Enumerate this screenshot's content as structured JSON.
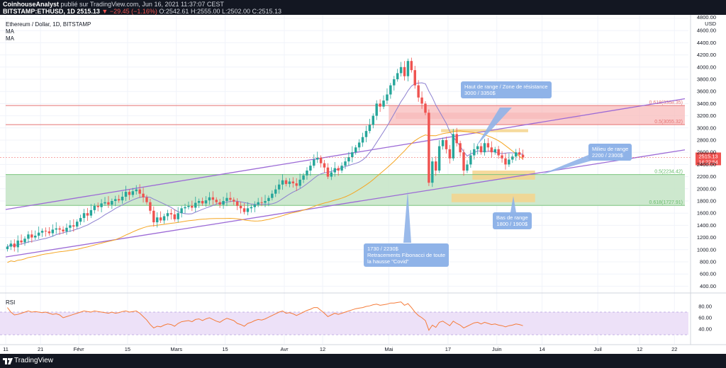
{
  "header": {
    "author": "CoinhouseAnalyst",
    "published": "publié sur TradingView.com, Jun 16, 2021 11:37:07 CEST",
    "symbol": "BITSTAMP:ETHUSD, 1D",
    "last": "2515.13",
    "change": "▼ −29.45 (−1.16%)",
    "ohlc": "O:2542.61 H:2555.00 L:2502.00 C:2515.13"
  },
  "legend": {
    "title": "Ethereum / Dollar, 1D, BITSTAMP",
    "ma1": "MA",
    "ma2": "MA",
    "rsi": "RSI"
  },
  "footer": {
    "brand": "TradingView"
  },
  "colors": {
    "up": "#26a69a",
    "down": "#ef5350",
    "channel": "#9c6ad6",
    "ma_fast": "#8c7fd0",
    "ma_slow": "#f5a623",
    "green_zone": "#c8e6c9",
    "red_zone": "#f8bbbb",
    "orange_zone": "#f5d48c",
    "rsi_line": "#f57c3a",
    "rsi_band": "#ede1f8",
    "note_bg": "#8fb3e8"
  },
  "annotations": {
    "resistance": [
      "Haut de range / Zone de résistance",
      "3000 / 3350$"
    ],
    "mid": [
      "Milieu de range",
      "2200 / 2300$"
    ],
    "low": [
      "Bas de range",
      "1800 / 1900$"
    ],
    "fib": [
      "1730 / 2230$",
      "Retracements Fibonacci de toute",
      "la hausse \"Covid\""
    ],
    "fib_levels": [
      "0.618(3368.35)",
      "0.5(3055.32)",
      "0.5(2234.42)",
      "0.618(1727.91)"
    ]
  },
  "chart_data": {
    "type": "candlestick",
    "title": "Ethereum / Dollar, 1D, BITSTAMP",
    "price_unit": "USD",
    "y_ticks": [
      400,
      600,
      800,
      1000,
      1200,
      1400,
      1600,
      1800,
      2000,
      2200,
      2400,
      2600,
      2800,
      3000,
      3200,
      3400,
      3600,
      3800,
      4000,
      4200,
      4400,
      4600,
      4800
    ],
    "price_labels": {
      "last": "2515.13",
      "countdown": "14:22:54",
      "top": "4800.00",
      "unit": "USD"
    },
    "x_ticks": [
      "11",
      "21",
      "Févr",
      "15",
      "Mars",
      "15",
      "Avr",
      "12",
      "Mai",
      "17",
      "Juin",
      "14",
      "Juil",
      "12",
      "22"
    ],
    "x_tick_days": [
      0,
      10,
      21,
      35,
      49,
      63,
      80,
      91,
      110,
      127,
      141,
      154,
      170,
      182,
      192
    ],
    "x_start_date": "2021-01-11",
    "closes": [
      1050,
      1100,
      1040,
      1150,
      1120,
      1180,
      1250,
      1200,
      1230,
      1280,
      1310,
      1300,
      1270,
      1330,
      1350,
      1330,
      1300,
      1360,
      1400,
      1380,
      1460,
      1520,
      1600,
      1560,
      1650,
      1720,
      1700,
      1760,
      1780,
      1740,
      1800,
      1830,
      1810,
      1870,
      1950,
      1900,
      1960,
      1990,
      1920,
      1860,
      1780,
      1640,
      1450,
      1530,
      1480,
      1550,
      1600,
      1580,
      1500,
      1600,
      1680,
      1700,
      1720,
      1690,
      1770,
      1800,
      1760,
      1810,
      1860,
      1820,
      1780,
      1740,
      1800,
      1850,
      1820,
      1790,
      1720,
      1680,
      1620,
      1680,
      1700,
      1740,
      1780,
      1770,
      1800,
      1850,
      1920,
      1990,
      2070,
      2140,
      2080,
      2120,
      2090,
      2050,
      2150,
      2220,
      2300,
      2380,
      2480,
      2510,
      2420,
      2350,
      2200,
      2270,
      2340,
      2300,
      2380,
      2450,
      2520,
      2600,
      2680,
      2760,
      2850,
      2950,
      3050,
      3200,
      3400,
      3350,
      3450,
      3550,
      3700,
      3800,
      3900,
      4000,
      3850,
      4100,
      3950,
      3700,
      3500,
      3400,
      3250,
      2100,
      2450,
      2300,
      2700,
      2800,
      2650,
      2500,
      2900,
      2750,
      2600,
      2300,
      2400,
      2550,
      2650,
      2700,
      2600,
      2750,
      2680,
      2600,
      2650,
      2550,
      2500,
      2400,
      2480,
      2530,
      2600,
      2560,
      2515
    ],
    "rsi_values": [
      78,
      70,
      65,
      66,
      68,
      70,
      72,
      70,
      71,
      70,
      69,
      70,
      68,
      66,
      67,
      65,
      60,
      62,
      64,
      66,
      68,
      70,
      72,
      71,
      70,
      72,
      71,
      70,
      69,
      68,
      70,
      68,
      69,
      71,
      72,
      70,
      71,
      72,
      68,
      62,
      56,
      48,
      42,
      45,
      44,
      47,
      49,
      48,
      45,
      50,
      53,
      54,
      55,
      53,
      57,
      58,
      55,
      58,
      60,
      57,
      54,
      52,
      56,
      59,
      57,
      55,
      50,
      48,
      45,
      50,
      52,
      55,
      57,
      56,
      58,
      61,
      64,
      67,
      70,
      72,
      68,
      69,
      67,
      64,
      67,
      70,
      73,
      75,
      78,
      78,
      73,
      68,
      62,
      65,
      68,
      66,
      68,
      70,
      72,
      74,
      76,
      77,
      78,
      80,
      81,
      83,
      84,
      82,
      83,
      84,
      86,
      86,
      87,
      88,
      82,
      85,
      78,
      70,
      64,
      60,
      55,
      38,
      47,
      43,
      52,
      54,
      50,
      46,
      54,
      50,
      47,
      42,
      45,
      48,
      51,
      52,
      49,
      52,
      50,
      48,
      49,
      47,
      46,
      44,
      46,
      47,
      49,
      48,
      46
    ],
    "rsi_ticks": [
      40,
      60,
      80
    ],
    "rsi_band": [
      30,
      70
    ],
    "channel_lines": [
      [
        [
          0,
          1660
        ],
        [
          195,
          3480
        ]
      ],
      [
        [
          0,
          880
        ],
        [
          195,
          2640
        ]
      ]
    ],
    "zones": [
      {
        "from_day": 0,
        "to_day": 195,
        "low": 1728,
        "high": 2234,
        "kind": "green"
      },
      {
        "from_day": 110,
        "to_day": 195,
        "low": 3055,
        "high": 3368,
        "kind": "red"
      },
      {
        "from_day": 112,
        "to_day": 165,
        "low": 3150,
        "high": 3250,
        "kind": "red_light"
      },
      {
        "from_day": 125,
        "to_day": 150,
        "low": 2930,
        "high": 2980,
        "kind": "orange"
      },
      {
        "from_day": 134,
        "to_day": 152,
        "low": 2150,
        "high": 2300,
        "kind": "orange"
      },
      {
        "from_day": 128,
        "to_day": 152,
        "low": 1780,
        "high": 1920,
        "kind": "orange"
      }
    ]
  }
}
